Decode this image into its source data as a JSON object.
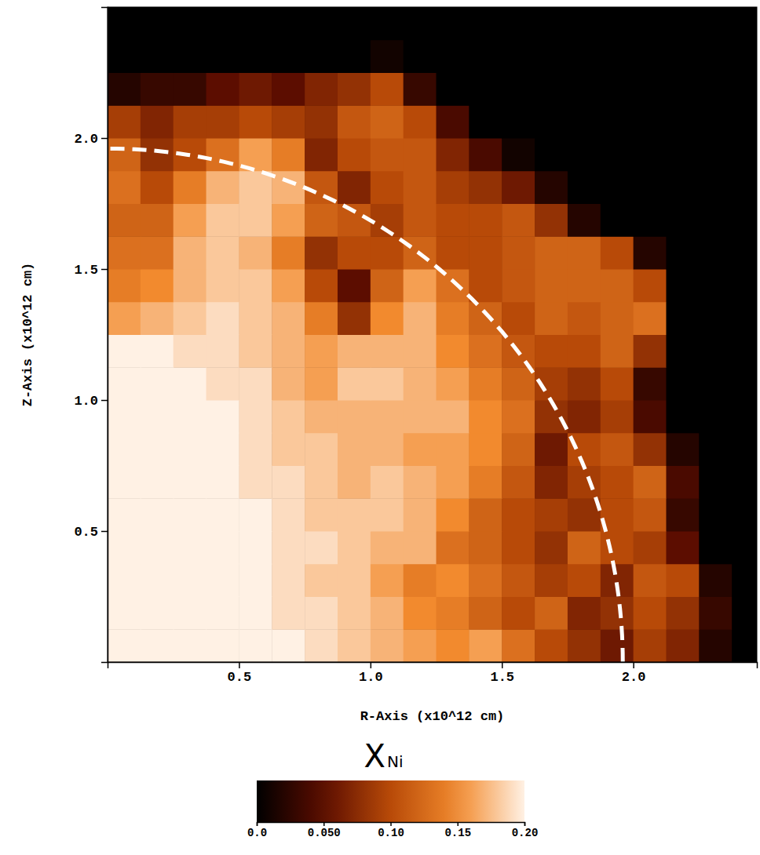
{
  "chart_data": {
    "type": "heatmap",
    "xlabel": "R-Axis (x10^12 cm)",
    "ylabel": "Z-Axis (x10^12 cm)",
    "xlim": [
      0,
      2.47
    ],
    "ylim": [
      0,
      2.5
    ],
    "xticks": [
      0.5,
      {
        "value": 1,
        "label": "1.0"
      },
      1.5,
      {
        "value": 2,
        "label": "2.0"
      }
    ],
    "yticks": [
      0.5,
      {
        "value": 1,
        "label": "1.0"
      },
      1.5,
      {
        "value": 2,
        "label": "2.0"
      }
    ],
    "x_edges": [
      0,
      0.125,
      0.25,
      0.375,
      0.5,
      0.625,
      0.75,
      0.875,
      1,
      1.125,
      1.25,
      1.375,
      1.5,
      1.625,
      1.75,
      1.875,
      2,
      2.125,
      2.25,
      2.375,
      2.5
    ],
    "y_edges": [
      0,
      0.125,
      0.25,
      0.375,
      0.5,
      0.625,
      0.75,
      0.875,
      1,
      1.125,
      1.25,
      1.375,
      1.5,
      1.625,
      1.75,
      1.875,
      2,
      2.125,
      2.25,
      2.375,
      2.5
    ],
    "cells": [
      [
        0.2,
        0.2,
        0.2,
        0.2,
        0.2,
        0.2,
        0.19,
        0.18,
        0.17,
        0.16,
        0.15,
        0.16,
        0.13,
        0.1,
        0.08,
        0.06,
        0.09,
        0.07,
        0.02,
        0
      ],
      [
        0.2,
        0.2,
        0.2,
        0.2,
        0.2,
        0.19,
        0.19,
        0.18,
        0.17,
        0.15,
        0.14,
        0.12,
        0.1,
        0.12,
        0.07,
        0.08,
        0.1,
        0.08,
        0.03,
        0
      ],
      [
        0.2,
        0.2,
        0.2,
        0.2,
        0.2,
        0.19,
        0.18,
        0.18,
        0.16,
        0.14,
        0.15,
        0.13,
        0.11,
        0.09,
        0.1,
        0.07,
        0.11,
        0.1,
        0.02,
        0
      ],
      [
        0.2,
        0.2,
        0.2,
        0.2,
        0.2,
        0.19,
        0.19,
        0.18,
        0.17,
        0.17,
        0.13,
        0.12,
        0.1,
        0.08,
        0.12,
        0.1,
        0.09,
        0.05,
        0,
        0
      ],
      [
        0.2,
        0.2,
        0.2,
        0.2,
        0.2,
        0.19,
        0.18,
        0.18,
        0.18,
        0.17,
        0.15,
        0.12,
        0.1,
        0.09,
        0.08,
        0.1,
        0.11,
        0.03,
        0,
        0
      ],
      [
        0.2,
        0.2,
        0.2,
        0.2,
        0.19,
        0.19,
        0.18,
        0.17,
        0.18,
        0.17,
        0.16,
        0.14,
        0.11,
        0.07,
        0.09,
        0.1,
        0.12,
        0.04,
        0,
        0
      ],
      [
        0.2,
        0.2,
        0.2,
        0.2,
        0.19,
        0.18,
        0.18,
        0.17,
        0.17,
        0.16,
        0.16,
        0.15,
        0.12,
        0.06,
        0.1,
        0.11,
        0.08,
        0.02,
        0,
        0
      ],
      [
        0.2,
        0.2,
        0.2,
        0.2,
        0.19,
        0.18,
        0.17,
        0.17,
        0.17,
        0.17,
        0.17,
        0.15,
        0.13,
        0.08,
        0.07,
        0.09,
        0.04,
        0,
        0,
        0
      ],
      [
        0.2,
        0.2,
        0.2,
        0.19,
        0.19,
        0.17,
        0.16,
        0.18,
        0.18,
        0.17,
        0.16,
        0.14,
        0.12,
        0.09,
        0.08,
        0.1,
        0.03,
        0,
        0,
        0
      ],
      [
        0.2,
        0.2,
        0.19,
        0.19,
        0.18,
        0.17,
        0.16,
        0.17,
        0.17,
        0.17,
        0.15,
        0.13,
        0.11,
        0.1,
        0.1,
        0.12,
        0.08,
        0,
        0,
        0
      ],
      [
        0.16,
        0.17,
        0.18,
        0.19,
        0.18,
        0.17,
        0.14,
        0.08,
        0.15,
        0.17,
        0.14,
        0.12,
        0.1,
        0.12,
        0.11,
        0.12,
        0.13,
        0,
        0,
        0
      ],
      [
        0.14,
        0.15,
        0.17,
        0.18,
        0.18,
        0.16,
        0.1,
        0.05,
        0.12,
        0.16,
        0.13,
        0.1,
        0.11,
        0.12,
        0.12,
        0.12,
        0.1,
        0,
        0,
        0
      ],
      [
        0.13,
        0.13,
        0.17,
        0.18,
        0.17,
        0.14,
        0.08,
        0.1,
        0.1,
        0.12,
        0.1,
        0.1,
        0.11,
        0.12,
        0.12,
        0.1,
        0.02,
        0,
        0,
        0
      ],
      [
        0.12,
        0.12,
        0.16,
        0.18,
        0.18,
        0.16,
        0.12,
        0.11,
        0.09,
        0.11,
        0.1,
        0.1,
        0.11,
        0.08,
        0.02,
        0,
        0,
        0,
        0,
        0
      ],
      [
        0.13,
        0.1,
        0.14,
        0.17,
        0.18,
        0.17,
        0.11,
        0.07,
        0.1,
        0.11,
        0.09,
        0.08,
        0.06,
        0.02,
        0,
        0,
        0,
        0,
        0,
        0
      ],
      [
        0.12,
        0.08,
        0.1,
        0.13,
        0.16,
        0.14,
        0.07,
        0.1,
        0.11,
        0.11,
        0.07,
        0.04,
        0.01,
        0,
        0,
        0,
        0,
        0,
        0,
        0
      ],
      [
        0.09,
        0.07,
        0.09,
        0.09,
        0.1,
        0.09,
        0.08,
        0.11,
        0.12,
        0.1,
        0.04,
        0,
        0,
        0,
        0,
        0,
        0,
        0,
        0,
        0
      ],
      [
        0.02,
        0.03,
        0.03,
        0.05,
        0.06,
        0.05,
        0.07,
        0.08,
        0.1,
        0.03,
        0,
        0,
        0,
        0,
        0,
        0,
        0,
        0,
        0,
        0
      ],
      [
        0,
        0,
        0,
        0,
        0,
        0,
        0,
        0,
        0.01,
        0,
        0,
        0,
        0,
        0,
        0,
        0,
        0,
        0,
        0,
        0
      ],
      [
        0,
        0,
        0,
        0,
        0,
        0,
        0,
        0,
        0,
        0,
        0,
        0,
        0,
        0,
        0,
        0,
        0,
        0,
        0,
        0
      ]
    ],
    "colorbar": {
      "label": "X",
      "label_subscript": "Ni",
      "range": [
        0,
        0.2
      ],
      "ticks": [
        {
          "value": 0,
          "label": "0.0"
        },
        {
          "value": 0.05,
          "label": "0.050"
        },
        {
          "value": 0.1,
          "label": "0.10"
        },
        0.15,
        {
          "value": 0.2,
          "label": "0.20"
        }
      ]
    },
    "arc_radius": 1.96
  }
}
